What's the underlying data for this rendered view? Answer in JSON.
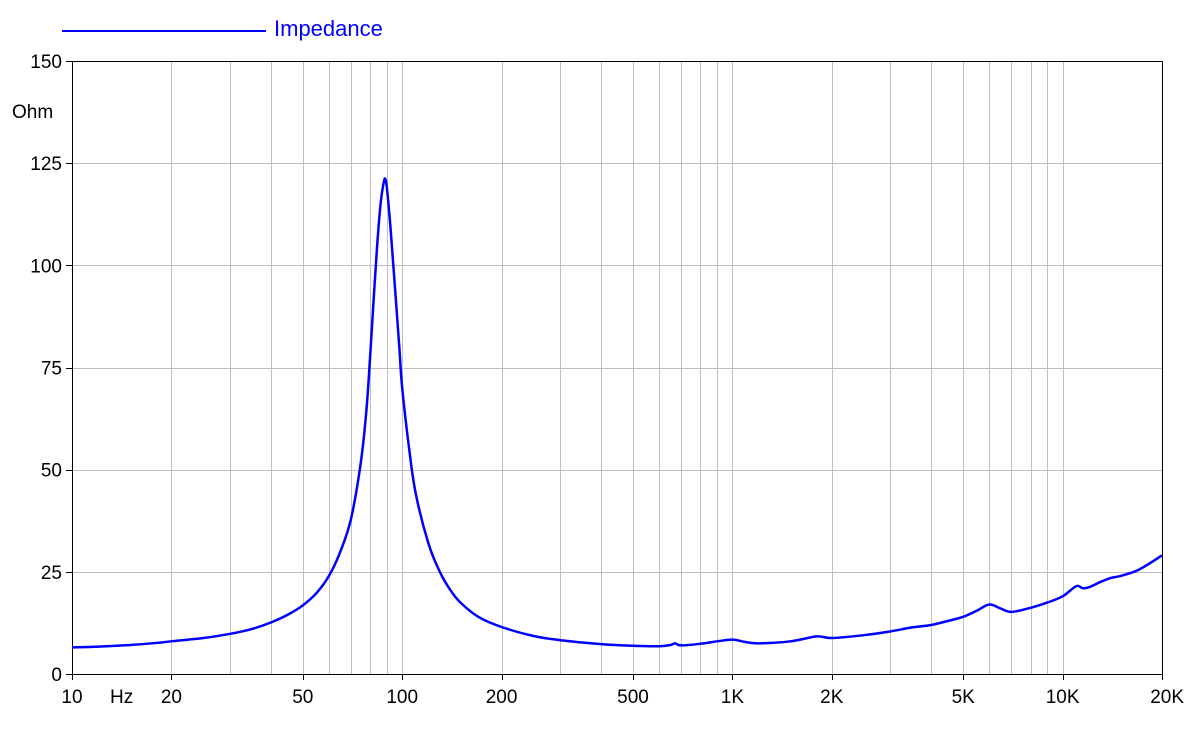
{
  "chart_data": {
    "type": "line",
    "x_scale": "log",
    "xlim": [
      10,
      20000
    ],
    "ylim": [
      0,
      150
    ],
    "ylabel": "Ohm",
    "xlabel": "Hz",
    "legend": {
      "label": "Impedance",
      "placement": "top-left"
    },
    "grid": true,
    "y_ticks": [
      {
        "value": 0,
        "label": "0"
      },
      {
        "value": 25,
        "label": "25"
      },
      {
        "value": 50,
        "label": "50"
      },
      {
        "value": 75,
        "label": "75"
      },
      {
        "value": 100,
        "label": "100"
      },
      {
        "value": 125,
        "label": "125"
      },
      {
        "value": 150,
        "label": "150"
      }
    ],
    "x_ticks": [
      {
        "value": 10,
        "label": "10"
      },
      {
        "value": 20,
        "label": "20"
      },
      {
        "value": 50,
        "label": "50"
      },
      {
        "value": 100,
        "label": "100"
      },
      {
        "value": 200,
        "label": "200"
      },
      {
        "value": 500,
        "label": "500"
      },
      {
        "value": 1000,
        "label": "1K"
      },
      {
        "value": 2000,
        "label": "2K"
      },
      {
        "value": 5000,
        "label": "5K"
      },
      {
        "value": 10000,
        "label": "10K"
      },
      {
        "value": 20000,
        "label": "20K"
      }
    ],
    "x_gridlines": [
      10,
      20,
      30,
      40,
      50,
      60,
      70,
      80,
      90,
      100,
      200,
      300,
      400,
      500,
      600,
      700,
      800,
      900,
      1000,
      2000,
      3000,
      4000,
      5000,
      6000,
      7000,
      8000,
      9000,
      10000,
      20000
    ],
    "colors": {
      "series": "#0000ff",
      "grid": "#bfbfbf",
      "axis": "#000000"
    },
    "series": [
      {
        "name": "Impedance",
        "color": "#0000ff",
        "points": [
          [
            10,
            6.5
          ],
          [
            12,
            6.7
          ],
          [
            15,
            7.1
          ],
          [
            18,
            7.6
          ],
          [
            20,
            8.0
          ],
          [
            25,
            8.8
          ],
          [
            30,
            9.8
          ],
          [
            35,
            11.0
          ],
          [
            40,
            12.6
          ],
          [
            45,
            14.5
          ],
          [
            50,
            16.8
          ],
          [
            55,
            19.8
          ],
          [
            60,
            24.0
          ],
          [
            65,
            30.0
          ],
          [
            70,
            38.0
          ],
          [
            75,
            52.0
          ],
          [
            78,
            65.0
          ],
          [
            80,
            78.0
          ],
          [
            82,
            92.0
          ],
          [
            84,
            105.0
          ],
          [
            86,
            115.0
          ],
          [
            88,
            120.5
          ],
          [
            89,
            121.0
          ],
          [
            90,
            118.5
          ],
          [
            92,
            110.0
          ],
          [
            95,
            95.0
          ],
          [
            98,
            80.0
          ],
          [
            100,
            70.0
          ],
          [
            105,
            55.0
          ],
          [
            110,
            44.0
          ],
          [
            120,
            32.0
          ],
          [
            130,
            25.0
          ],
          [
            140,
            20.5
          ],
          [
            150,
            17.5
          ],
          [
            170,
            14.0
          ],
          [
            200,
            11.5
          ],
          [
            250,
            9.3
          ],
          [
            300,
            8.3
          ],
          [
            400,
            7.3
          ],
          [
            500,
            6.9
          ],
          [
            600,
            6.8
          ],
          [
            650,
            7.1
          ],
          [
            670,
            7.5
          ],
          [
            700,
            7.0
          ],
          [
            800,
            7.4
          ],
          [
            900,
            8.0
          ],
          [
            1000,
            8.4
          ],
          [
            1100,
            7.8
          ],
          [
            1200,
            7.5
          ],
          [
            1500,
            8.0
          ],
          [
            1800,
            9.2
          ],
          [
            2000,
            8.8
          ],
          [
            2500,
            9.5
          ],
          [
            3000,
            10.4
          ],
          [
            3500,
            11.4
          ],
          [
            4000,
            12.0
          ],
          [
            4500,
            13.0
          ],
          [
            5000,
            14.0
          ],
          [
            5500,
            15.5
          ],
          [
            6000,
            17.0
          ],
          [
            6500,
            16.0
          ],
          [
            7000,
            15.2
          ],
          [
            8000,
            16.2
          ],
          [
            9000,
            17.5
          ],
          [
            10000,
            19.0
          ],
          [
            11000,
            21.5
          ],
          [
            11500,
            21.0
          ],
          [
            12000,
            21.2
          ],
          [
            13000,
            22.5
          ],
          [
            14000,
            23.5
          ],
          [
            15000,
            24.0
          ],
          [
            17000,
            25.5
          ],
          [
            20000,
            29.0
          ]
        ]
      }
    ]
  }
}
